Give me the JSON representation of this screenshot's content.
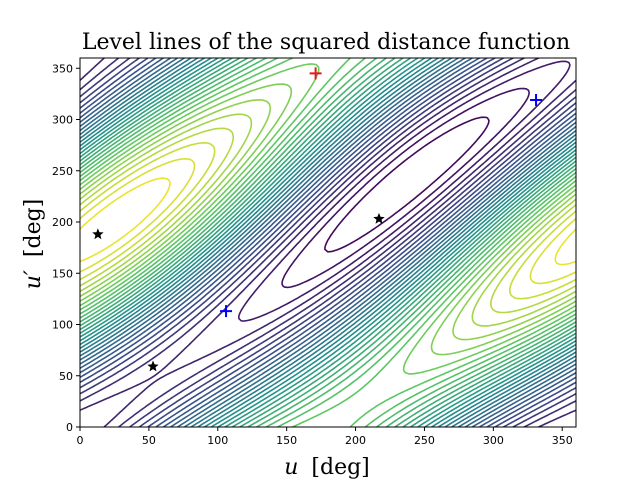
{
  "chart_data": {
    "type": "contour",
    "title": "Level lines of the squared distance function",
    "xlabel": {
      "symbol": "u",
      "unit": "[deg]"
    },
    "ylabel": {
      "symbol": "u′",
      "unit": "[deg]"
    },
    "xlim": [
      0,
      360
    ],
    "ylim": [
      0,
      360
    ],
    "xticks": [
      0,
      50,
      100,
      150,
      200,
      250,
      300,
      350
    ],
    "yticks": [
      0,
      50,
      100,
      150,
      200,
      250,
      300,
      350
    ],
    "colormap": [
      "#440154",
      "#3b528b",
      "#21918c",
      "#5ec962",
      "#fde725"
    ],
    "contour_levels": 34,
    "markers": [
      {
        "kind": "max",
        "symbol": "plus",
        "color": "#e41a1c",
        "u": 171,
        "u_prime": 345
      },
      {
        "kind": "min",
        "symbol": "plus",
        "color": "#0000ff",
        "u": 106,
        "u_prime": 113
      },
      {
        "kind": "min",
        "symbol": "plus",
        "color": "#0000ff",
        "u": 331,
        "u_prime": 319
      },
      {
        "kind": "saddle",
        "symbol": "star",
        "color": "#000000",
        "u": 13,
        "u_prime": 188
      },
      {
        "kind": "saddle",
        "symbol": "star",
        "color": "#000000",
        "u": 53,
        "u_prime": 59
      },
      {
        "kind": "saddle",
        "symbol": "star",
        "color": "#000000",
        "u": 217,
        "u_prime": 203
      }
    ]
  }
}
